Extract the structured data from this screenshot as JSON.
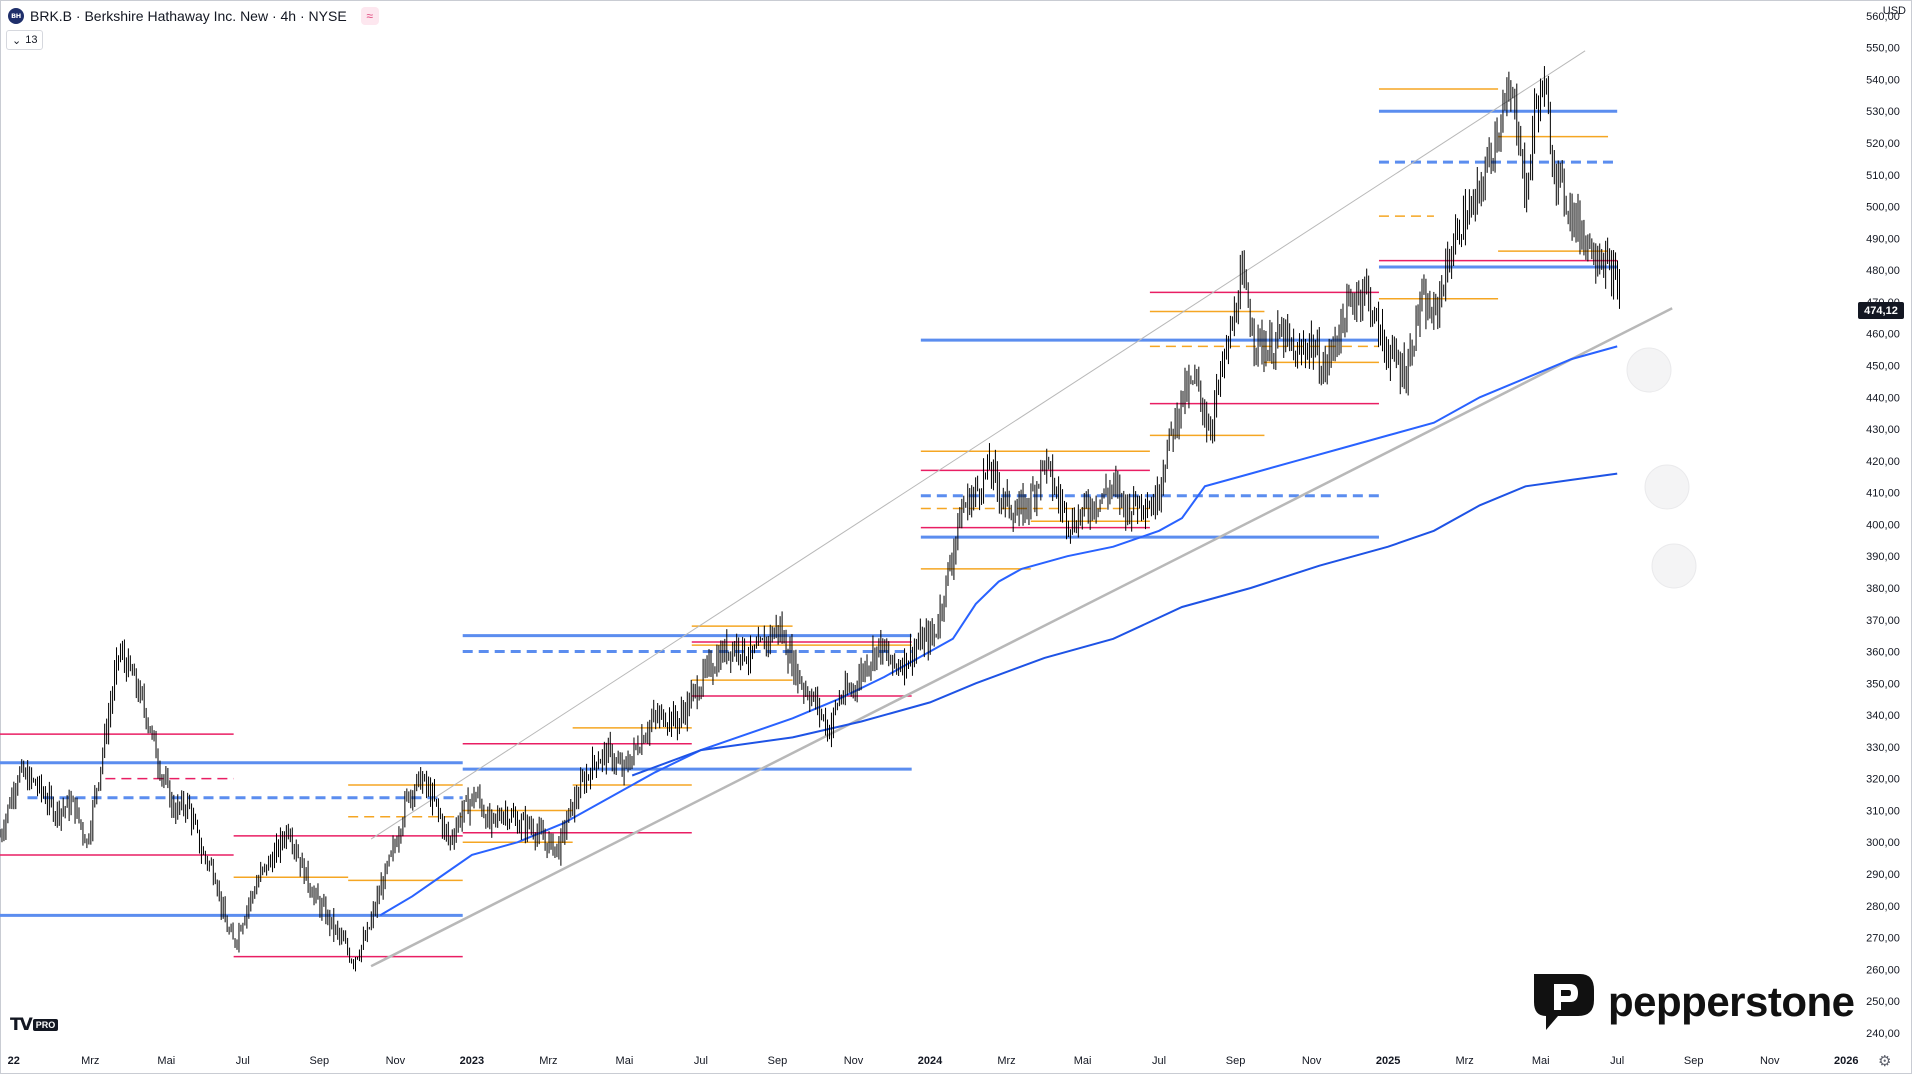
{
  "header": {
    "logo_text": "BH",
    "title": "BRK.B · Berkshire Hathaway Inc. New · 4h · NYSE",
    "indicator_toggle_count": "13",
    "currency": "USD"
  },
  "last_price_label": "474,12",
  "branding": {
    "platform_badge": "PRO",
    "broker": "pepperstone"
  },
  "colors": {
    "candle": "#000000",
    "ma_fast": "#2962ff",
    "ma_slow": "#1e53e5",
    "level_blue": "#5b8def",
    "level_orange": "#f5a623",
    "level_pink": "#e91e63",
    "trendline": "#b8b8b8"
  },
  "chart_data": {
    "type": "line",
    "subtype": "candlestick-price-chart",
    "symbol": "BRK.B",
    "timeframe": "4h",
    "ylim": [
      234,
      565
    ],
    "y_ticks": [
      "240,00",
      "250,00",
      "260,00",
      "270,00",
      "280,00",
      "290,00",
      "300,00",
      "310,00",
      "320,00",
      "330,00",
      "340,00",
      "350,00",
      "360,00",
      "370,00",
      "380,00",
      "390,00",
      "400,00",
      "410,00",
      "420,00",
      "430,00",
      "440,00",
      "450,00",
      "460,00",
      "470,00",
      "480,00",
      "490,00",
      "500,00",
      "510,00",
      "520,00",
      "530,00",
      "540,00",
      "550,00",
      "560,00"
    ],
    "x_ticks": [
      {
        "label": "22",
        "t": 2022.0
      },
      {
        "label": "Mrz",
        "t": 2022.167
      },
      {
        "label": "Mai",
        "t": 2022.333
      },
      {
        "label": "Jul",
        "t": 2022.5
      },
      {
        "label": "Sep",
        "t": 2022.667
      },
      {
        "label": "Nov",
        "t": 2022.833
      },
      {
        "label": "2023",
        "t": 2023.0
      },
      {
        "label": "Mrz",
        "t": 2023.167
      },
      {
        "label": "Mai",
        "t": 2023.333
      },
      {
        "label": "Jul",
        "t": 2023.5
      },
      {
        "label": "Sep",
        "t": 2023.667
      },
      {
        "label": "Nov",
        "t": 2023.833
      },
      {
        "label": "2024",
        "t": 2024.0
      },
      {
        "label": "Mrz",
        "t": 2024.167
      },
      {
        "label": "Mai",
        "t": 2024.333
      },
      {
        "label": "Jul",
        "t": 2024.5
      },
      {
        "label": "Sep",
        "t": 2024.667
      },
      {
        "label": "Nov",
        "t": 2024.833
      },
      {
        "label": "2025",
        "t": 2025.0
      },
      {
        "label": "Mrz",
        "t": 2025.167
      },
      {
        "label": "Mai",
        "t": 2025.333
      },
      {
        "label": "Jul",
        "t": 2025.5
      },
      {
        "label": "Sep",
        "t": 2025.667
      },
      {
        "label": "Nov",
        "t": 2025.833
      },
      {
        "label": "2026",
        "t": 2026.0
      }
    ],
    "xlim": [
      2021.97,
      2026.03
    ],
    "price_path": [
      [
        2021.97,
        302
      ],
      [
        2022.01,
        322
      ],
      [
        2022.05,
        318
      ],
      [
        2022.09,
        310
      ],
      [
        2022.13,
        312
      ],
      [
        2022.16,
        300
      ],
      [
        2022.19,
        325
      ],
      [
        2022.23,
        360
      ],
      [
        2022.26,
        352
      ],
      [
        2022.29,
        340
      ],
      [
        2022.32,
        323
      ],
      [
        2022.35,
        310
      ],
      [
        2022.38,
        312
      ],
      [
        2022.41,
        297
      ],
      [
        2022.44,
        290
      ],
      [
        2022.46,
        275
      ],
      [
        2022.48,
        268
      ],
      [
        2022.51,
        280
      ],
      [
        2022.54,
        290
      ],
      [
        2022.57,
        296
      ],
      [
        2022.6,
        305
      ],
      [
        2022.63,
        292
      ],
      [
        2022.66,
        282
      ],
      [
        2022.69,
        275
      ],
      [
        2022.72,
        268
      ],
      [
        2022.74,
        263
      ],
      [
        2022.77,
        270
      ],
      [
        2022.8,
        285
      ],
      [
        2022.83,
        298
      ],
      [
        2022.86,
        315
      ],
      [
        2022.89,
        320
      ],
      [
        2022.92,
        312
      ],
      [
        2022.95,
        300
      ],
      [
        2022.98,
        310
      ],
      [
        2023.01,
        315
      ],
      [
        2023.04,
        305
      ],
      [
        2023.07,
        310
      ],
      [
        2023.1,
        306
      ],
      [
        2023.13,
        305
      ],
      [
        2023.16,
        300
      ],
      [
        2023.19,
        298
      ],
      [
        2023.21,
        308
      ],
      [
        2023.24,
        318
      ],
      [
        2023.27,
        326
      ],
      [
        2023.3,
        328
      ],
      [
        2023.33,
        322
      ],
      [
        2023.36,
        330
      ],
      [
        2023.39,
        338
      ],
      [
        2023.42,
        340
      ],
      [
        2023.45,
        338
      ],
      [
        2023.49,
        348
      ],
      [
        2023.52,
        355
      ],
      [
        2023.55,
        360
      ],
      [
        2023.58,
        362
      ],
      [
        2023.61,
        358
      ],
      [
        2023.64,
        363
      ],
      [
        2023.67,
        368
      ],
      [
        2023.69,
        360
      ],
      [
        2023.72,
        350
      ],
      [
        2023.75,
        344
      ],
      [
        2023.78,
        335
      ],
      [
        2023.8,
        345
      ],
      [
        2023.83,
        348
      ],
      [
        2023.86,
        356
      ],
      [
        2023.89,
        362
      ],
      [
        2023.92,
        355
      ],
      [
        2023.95,
        358
      ],
      [
        2023.98,
        363
      ],
      [
        2024.01,
        365
      ],
      [
        2024.04,
        385
      ],
      [
        2024.07,
        405
      ],
      [
        2024.1,
        410
      ],
      [
        2024.13,
        418
      ],
      [
        2024.16,
        408
      ],
      [
        2024.19,
        403
      ],
      [
        2024.22,
        408
      ],
      [
        2024.25,
        420
      ],
      [
        2024.28,
        408
      ],
      [
        2024.31,
        400
      ],
      [
        2024.34,
        405
      ],
      [
        2024.37,
        408
      ],
      [
        2024.4,
        412
      ],
      [
        2024.43,
        405
      ],
      [
        2024.46,
        408
      ],
      [
        2024.49,
        406
      ],
      [
        2024.52,
        425
      ],
      [
        2024.55,
        440
      ],
      [
        2024.58,
        445
      ],
      [
        2024.61,
        430
      ],
      [
        2024.64,
        450
      ],
      [
        2024.66,
        462
      ],
      [
        2024.68,
        478
      ],
      [
        2024.71,
        458
      ],
      [
        2024.74,
        455
      ],
      [
        2024.77,
        460
      ],
      [
        2024.8,
        452
      ],
      [
        2024.83,
        458
      ],
      [
        2024.86,
        448
      ],
      [
        2024.89,
        460
      ],
      [
        2024.92,
        470
      ],
      [
        2024.95,
        475
      ],
      [
        2024.98,
        460
      ],
      [
        2025.01,
        452
      ],
      [
        2025.04,
        448
      ],
      [
        2025.07,
        470
      ],
      [
        2025.1,
        465
      ],
      [
        2025.13,
        482
      ],
      [
        2025.16,
        495
      ],
      [
        2025.19,
        500
      ],
      [
        2025.22,
        515
      ],
      [
        2025.25,
        530
      ],
      [
        2025.27,
        535
      ],
      [
        2025.29,
        520
      ],
      [
        2025.3,
        500
      ],
      [
        2025.32,
        530
      ],
      [
        2025.34,
        538
      ],
      [
        2025.36,
        515
      ],
      [
        2025.38,
        505
      ],
      [
        2025.41,
        495
      ],
      [
        2025.44,
        488
      ],
      [
        2025.47,
        484
      ],
      [
        2025.49,
        478
      ],
      [
        2025.505,
        474.12
      ]
    ],
    "ma_fast": [
      [
        2022.8,
        277
      ],
      [
        2022.87,
        283
      ],
      [
        2022.94,
        290
      ],
      [
        2023.0,
        296
      ],
      [
        2023.1,
        300
      ],
      [
        2023.2,
        306
      ],
      [
        2023.3,
        314
      ],
      [
        2023.4,
        322
      ],
      [
        2023.5,
        329
      ],
      [
        2023.6,
        334
      ],
      [
        2023.7,
        339
      ],
      [
        2023.8,
        345
      ],
      [
        2023.9,
        352
      ],
      [
        2024.0,
        360
      ],
      [
        2024.05,
        364
      ],
      [
        2024.1,
        375
      ],
      [
        2024.15,
        382
      ],
      [
        2024.2,
        386
      ],
      [
        2024.3,
        390
      ],
      [
        2024.4,
        393
      ],
      [
        2024.5,
        398
      ],
      [
        2024.55,
        402
      ],
      [
        2024.6,
        412
      ],
      [
        2024.7,
        416
      ],
      [
        2024.8,
        420
      ],
      [
        2024.9,
        424
      ],
      [
        2025.0,
        428
      ],
      [
        2025.1,
        432
      ],
      [
        2025.2,
        440
      ],
      [
        2025.3,
        446
      ],
      [
        2025.4,
        452
      ],
      [
        2025.5,
        456
      ]
    ],
    "ma_slow": [
      [
        2023.35,
        321
      ],
      [
        2023.5,
        329
      ],
      [
        2023.7,
        333
      ],
      [
        2023.85,
        338
      ],
      [
        2024.0,
        344
      ],
      [
        2024.1,
        350
      ],
      [
        2024.25,
        358
      ],
      [
        2024.4,
        364
      ],
      [
        2024.55,
        374
      ],
      [
        2024.7,
        380
      ],
      [
        2024.85,
        387
      ],
      [
        2025.0,
        393
      ],
      [
        2025.1,
        398
      ],
      [
        2025.2,
        406
      ],
      [
        2025.3,
        412
      ],
      [
        2025.4,
        414
      ],
      [
        2025.5,
        416
      ]
    ],
    "trendlines": [
      {
        "name": "upper-channel-line",
        "from": [
          2022.78,
          301
        ],
        "to": [
          2025.43,
          549
        ]
      },
      {
        "name": "lower-channel-line",
        "from": [
          2022.78,
          261
        ],
        "to": [
          2025.62,
          468
        ]
      }
    ],
    "levels": [
      {
        "color": "pink",
        "price": 334,
        "t0": 2021.97,
        "t1": 2022.48
      },
      {
        "color": "blue",
        "price": 325,
        "t0": 2021.97,
        "t1": 2022.98
      },
      {
        "color": "blue",
        "price": 314,
        "t0": 2022.03,
        "t1": 2022.98,
        "dashed": true
      },
      {
        "color": "pink",
        "price": 320,
        "t0": 2022.2,
        "t1": 2022.48,
        "dashed": true
      },
      {
        "color": "pink",
        "price": 296,
        "t0": 2021.97,
        "t1": 2022.48
      },
      {
        "color": "blue",
        "price": 277,
        "t0": 2021.97,
        "t1": 2022.98
      },
      {
        "color": "pink",
        "price": 302,
        "t0": 2022.48,
        "t1": 2022.98
      },
      {
        "color": "orange",
        "price": 289,
        "t0": 2022.48,
        "t1": 2022.73
      },
      {
        "color": "orange",
        "price": 288,
        "t0": 2022.73,
        "t1": 2022.98
      },
      {
        "color": "orange",
        "price": 318,
        "t0": 2022.73,
        "t1": 2022.98
      },
      {
        "color": "orange",
        "price": 308,
        "t0": 2022.73,
        "t1": 2022.98,
        "dashed": true
      },
      {
        "color": "pink",
        "price": 264,
        "t0": 2022.48,
        "t1": 2022.98
      },
      {
        "color": "blue",
        "price": 365,
        "t0": 2022.98,
        "t1": 2023.96
      },
      {
        "color": "blue",
        "price": 360,
        "t0": 2022.98,
        "t1": 2023.96,
        "dashed": true
      },
      {
        "color": "blue",
        "price": 323,
        "t0": 2022.98,
        "t1": 2023.96
      },
      {
        "color": "pink",
        "price": 331,
        "t0": 2022.98,
        "t1": 2023.48
      },
      {
        "color": "pink",
        "price": 303,
        "t0": 2022.98,
        "t1": 2023.48
      },
      {
        "color": "orange",
        "price": 336,
        "t0": 2023.22,
        "t1": 2023.48
      },
      {
        "color": "orange",
        "price": 318,
        "t0": 2023.22,
        "t1": 2023.48
      },
      {
        "color": "orange",
        "price": 310,
        "t0": 2022.98,
        "t1": 2023.22
      },
      {
        "color": "orange",
        "price": 300,
        "t0": 2022.98,
        "t1": 2023.22
      },
      {
        "color": "orange",
        "price": 368,
        "t0": 2023.48,
        "t1": 2023.7
      },
      {
        "color": "pink",
        "price": 363,
        "t0": 2023.48,
        "t1": 2023.96
      },
      {
        "color": "orange",
        "price": 362,
        "t0": 2023.48,
        "t1": 2023.96
      },
      {
        "color": "orange",
        "price": 351,
        "t0": 2023.48,
        "t1": 2023.7
      },
      {
        "color": "pink",
        "price": 346,
        "t0": 2023.48,
        "t1": 2023.96
      },
      {
        "color": "blue",
        "price": 458,
        "t0": 2023.98,
        "t1": 2024.98
      },
      {
        "color": "blue",
        "price": 409,
        "t0": 2023.98,
        "t1": 2024.98,
        "dashed": true
      },
      {
        "color": "blue",
        "price": 396,
        "t0": 2023.98,
        "t1": 2024.98
      },
      {
        "color": "orange",
        "price": 423,
        "t0": 2023.98,
        "t1": 2024.48
      },
      {
        "color": "pink",
        "price": 417,
        "t0": 2023.98,
        "t1": 2024.48
      },
      {
        "color": "orange",
        "price": 405,
        "t0": 2023.98,
        "t1": 2024.48,
        "dashed": true
      },
      {
        "color": "pink",
        "price": 399,
        "t0": 2023.98,
        "t1": 2024.48
      },
      {
        "color": "orange",
        "price": 386,
        "t0": 2023.98,
        "t1": 2024.22
      },
      {
        "color": "orange",
        "price": 401,
        "t0": 2024.22,
        "t1": 2024.48
      },
      {
        "color": "pink",
        "price": 473,
        "t0": 2024.48,
        "t1": 2024.98
      },
      {
        "color": "orange",
        "price": 467,
        "t0": 2024.48,
        "t1": 2024.73
      },
      {
        "color": "orange",
        "price": 456,
        "t0": 2024.48,
        "t1": 2024.98,
        "dashed": true
      },
      {
        "color": "orange",
        "price": 451,
        "t0": 2024.73,
        "t1": 2024.98
      },
      {
        "color": "orange",
        "price": 428,
        "t0": 2024.48,
        "t1": 2024.73
      },
      {
        "color": "pink",
        "price": 438,
        "t0": 2024.48,
        "t1": 2024.98
      },
      {
        "color": "orange",
        "price": 537,
        "t0": 2024.98,
        "t1": 2025.24
      },
      {
        "color": "blue",
        "price": 530,
        "t0": 2024.98,
        "t1": 2025.5
      },
      {
        "color": "blue",
        "price": 514,
        "t0": 2024.98,
        "t1": 2025.5,
        "dashed": true
      },
      {
        "color": "orange",
        "price": 522,
        "t0": 2025.24,
        "t1": 2025.48
      },
      {
        "color": "orange",
        "price": 497,
        "t0": 2024.98,
        "t1": 2025.1,
        "dashed": true
      },
      {
        "color": "orange",
        "price": 486,
        "t0": 2025.24,
        "t1": 2025.48
      },
      {
        "color": "pink",
        "price": 483,
        "t0": 2024.98,
        "t1": 2025.5
      },
      {
        "color": "blue",
        "price": 481,
        "t0": 2024.98,
        "t1": 2025.5
      },
      {
        "color": "orange",
        "price": 471,
        "t0": 2024.98,
        "t1": 2025.24
      }
    ]
  }
}
